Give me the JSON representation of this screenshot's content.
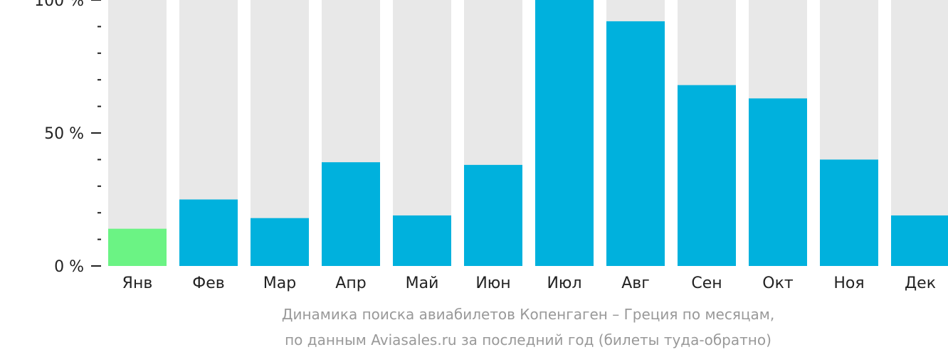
{
  "chart_data": {
    "type": "bar",
    "categories": [
      "Янв",
      "Фев",
      "Мар",
      "Апр",
      "Май",
      "Июн",
      "Июл",
      "Авг",
      "Сен",
      "Окт",
      "Ноя",
      "Дек"
    ],
    "values": [
      14,
      25,
      18,
      39,
      19,
      38,
      100,
      92,
      68,
      63,
      40,
      19
    ],
    "highlight_index": 0,
    "ylim": [
      0,
      100
    ],
    "y_ticks": [
      {
        "value": 0,
        "label": "0 %"
      },
      {
        "value": 50,
        "label": "50 %"
      },
      {
        "value": 100,
        "label": "100 %"
      }
    ],
    "y_minor_step": 10,
    "colors": {
      "bar": "#00b1dd",
      "highlight": "#6bf384",
      "track": "#e8e8e8",
      "axis": "#222222"
    },
    "caption_lines": [
      "Динамика поиска авиабилетов Копенгаген – Греция по месяцам,",
      "по данным Aviasales.ru за последний год (билеты туда-обратно)"
    ]
  }
}
